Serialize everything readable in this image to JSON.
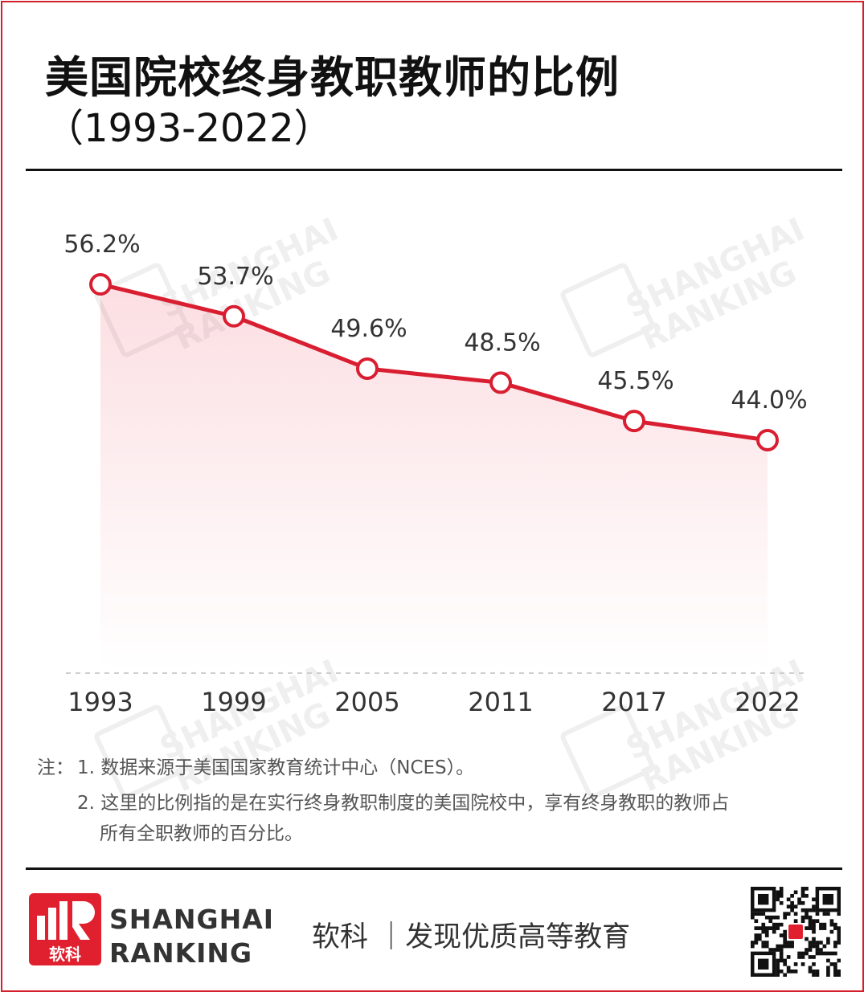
{
  "title": "美国院校终身教职教师的比例",
  "subtitle": "（1993-2022）",
  "chart_data": {
    "type": "line",
    "x": [
      "1993",
      "1999",
      "2005",
      "2011",
      "2017",
      "2022"
    ],
    "series": [
      {
        "values": [
          56.2,
          53.7,
          49.6,
          48.5,
          45.5,
          44.0
        ]
      }
    ],
    "data_labels": [
      "56.2%",
      "53.7%",
      "49.6%",
      "48.5%",
      "45.5%",
      "44.0%"
    ],
    "ylim": [
      0,
      60
    ],
    "grid": false,
    "color": "#d81e30"
  },
  "notes": {
    "label": "注：",
    "items": [
      "1. 数据来源于美国国家教育统计中心（NCES）。",
      "2. 这里的比例指的是在实行终身教职制度的美国院校中，享有终身教职的教师占",
      "所有全职教师的百分比。"
    ]
  },
  "footer": {
    "brand_line1": "SHANGHAI",
    "brand_line2": "RANKING",
    "slogan": "软科 ｜发现优质高等教育",
    "logo_text": "软科",
    "accent": "#e0202e"
  }
}
